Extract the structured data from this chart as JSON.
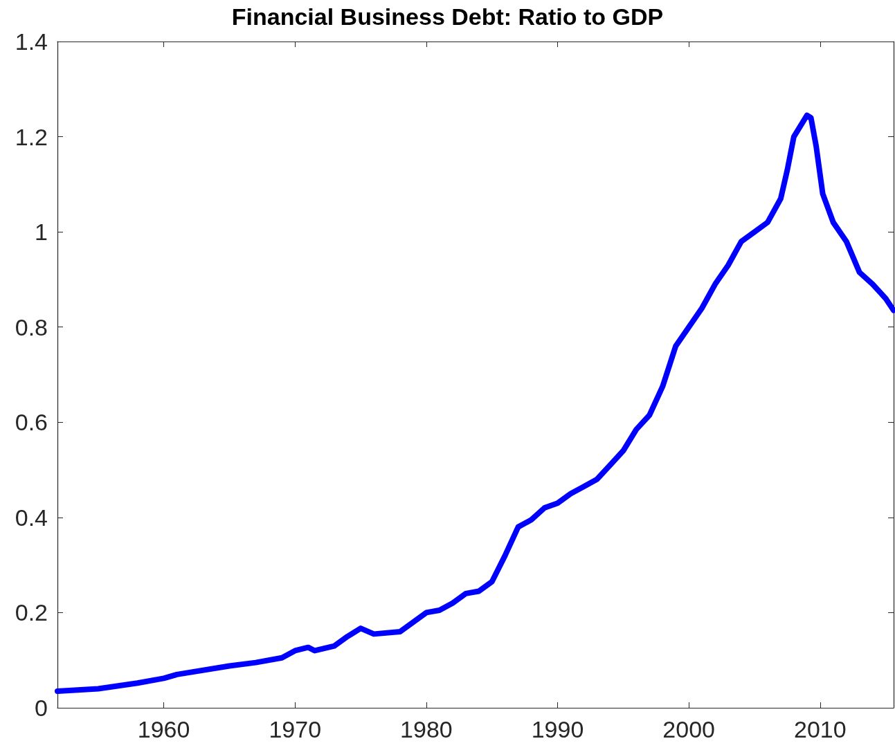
{
  "chart_data": {
    "type": "line",
    "title": "Financial Business Debt: Ratio to GDP",
    "xlim": [
      1951.9,
      2015.6
    ],
    "xticks": [
      1960,
      1970,
      1980,
      1990,
      2000,
      2010
    ],
    "ylim": [
      0,
      1.4
    ],
    "yticks": [
      0,
      0.2,
      0.4,
      0.6,
      0.8,
      1,
      1.2,
      1.4
    ],
    "grid": false,
    "line_style": "solid",
    "series": [
      {
        "color": "#0000ff",
        "x": [
          1951.9,
          1955,
          1958,
          1960,
          1961,
          1965,
          1967,
          1969,
          1970,
          1971,
          1971.5,
          1973,
          1974,
          1975,
          1976,
          1978,
          1979,
          1980,
          1981,
          1982,
          1983,
          1984,
          1985,
          1986,
          1987,
          1988,
          1989,
          1990,
          1991,
          1992,
          1993,
          1994,
          1995,
          1996,
          1997,
          1998,
          1999,
          2000,
          2001,
          2002,
          2003,
          2004,
          2005,
          2006,
          2007,
          2007.5,
          2008,
          2009,
          2009.3,
          2009.7,
          2010.2,
          2011,
          2012,
          2013,
          2014,
          2015,
          2015.6
        ],
        "values": [
          0.035,
          0.04,
          0.052,
          0.062,
          0.07,
          0.088,
          0.095,
          0.105,
          0.12,
          0.127,
          0.12,
          0.13,
          0.15,
          0.167,
          0.155,
          0.16,
          0.18,
          0.2,
          0.205,
          0.22,
          0.24,
          0.245,
          0.265,
          0.32,
          0.38,
          0.395,
          0.42,
          0.43,
          0.45,
          0.465,
          0.48,
          0.51,
          0.54,
          0.585,
          0.615,
          0.675,
          0.76,
          0.8,
          0.84,
          0.89,
          0.93,
          0.98,
          1.0,
          1.02,
          1.07,
          1.13,
          1.2,
          1.245,
          1.24,
          1.18,
          1.08,
          1.02,
          0.98,
          0.915,
          0.89,
          0.86,
          0.835
        ]
      }
    ]
  }
}
